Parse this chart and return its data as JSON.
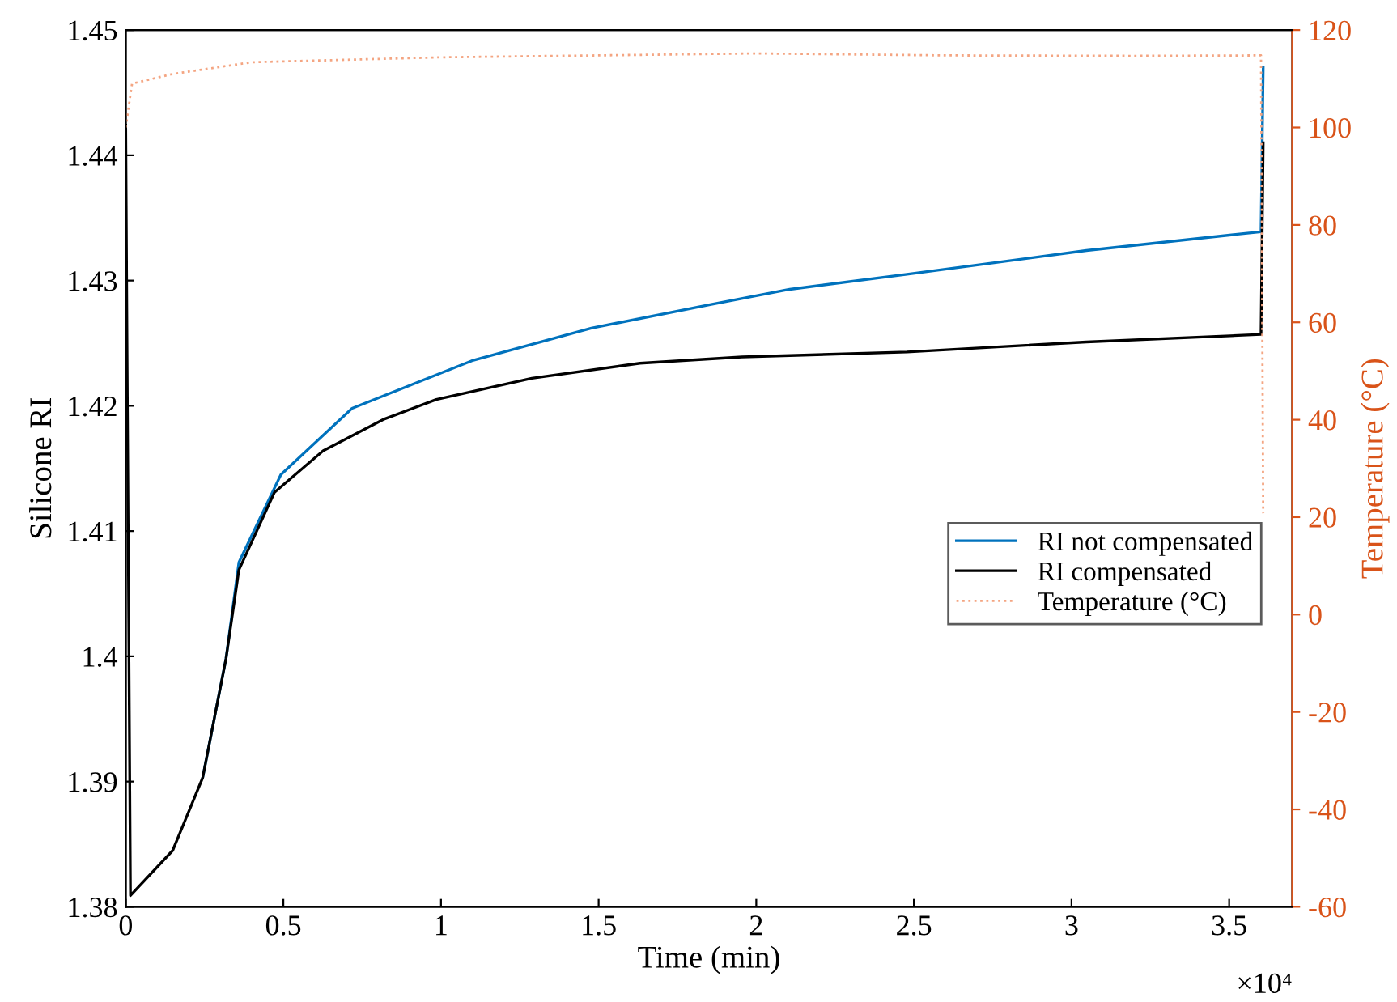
{
  "chart_data": {
    "type": "line",
    "xlabel": "Time (min)",
    "ylabel": "Silicone RI",
    "y2label": "Temperature (°C)",
    "annotations": [
      "×10⁴"
    ],
    "xlim": [
      0,
      3.7
    ],
    "xticks": [
      0,
      0.5,
      1,
      1.5,
      2,
      2.5,
      3,
      3.5
    ],
    "ylim": [
      1.38,
      1.45
    ],
    "yticks": [
      1.38,
      1.39,
      1.4,
      1.41,
      1.42,
      1.43,
      1.44,
      1.45
    ],
    "y2lim": [
      -60,
      120
    ],
    "y2ticks": [
      -60,
      -40,
      -20,
      0,
      20,
      40,
      60,
      80,
      100,
      120
    ],
    "grid": false,
    "legend": "right",
    "series": [
      {
        "name": "RI not compensated",
        "color": "#0072bd",
        "line_style": "solid",
        "x": [
          0.244,
          0.318,
          0.359,
          0.492,
          0.718,
          1.098,
          1.477,
          1.857,
          2.106,
          2.478,
          3.047,
          3.601,
          3.608
        ],
        "values": [
          1.3903,
          1.3998,
          1.4075,
          1.4145,
          1.4198,
          1.4236,
          1.4262,
          1.4281,
          1.4293,
          1.4305,
          1.4324,
          1.4339,
          1.447
        ]
      },
      {
        "name": "RI compensated",
        "color": "#000000",
        "line_style": "solid",
        "x": [
          0,
          0.004,
          0.015,
          0.149,
          0.244,
          0.318,
          0.359,
          0.472,
          0.626,
          0.816,
          0.985,
          1.288,
          1.631,
          1.955,
          2.478,
          3.047,
          3.601,
          3.608
        ],
        "values": [
          1.4424,
          1.425,
          1.3809,
          1.3845,
          1.3903,
          1.3998,
          1.4069,
          1.4131,
          1.4164,
          1.4189,
          1.4205,
          1.4222,
          1.4234,
          1.4239,
          1.4243,
          1.4251,
          1.4257,
          1.441
        ]
      },
      {
        "name": "Temperature (°C)",
        "color": "#f4a582",
        "line_style": "dotted",
        "axis": "y2",
        "x": [
          0,
          0.02,
          0.15,
          0.4,
          1.0,
          2.0,
          2.6,
          3.2,
          3.601,
          3.608
        ],
        "values": [
          100,
          109,
          111,
          113.4,
          114.4,
          115.2,
          114.8,
          114.7,
          114.8,
          20.8
        ]
      }
    ]
  }
}
